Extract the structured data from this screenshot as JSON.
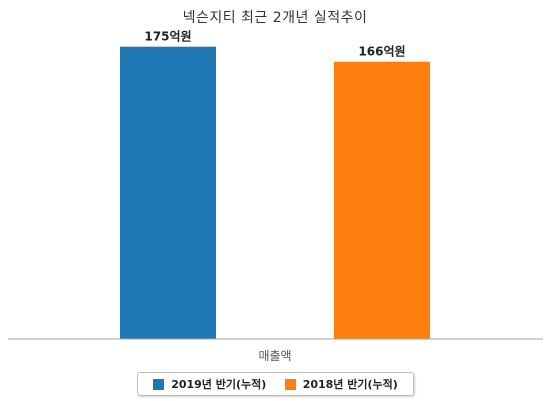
{
  "chart_data": {
    "type": "bar",
    "title": "넥슨지티 최근 2개년 실적추이",
    "categories": [
      "매출액"
    ],
    "series": [
      {
        "name": "2019년 반기(누적)",
        "values": [
          175
        ],
        "label": "175억원",
        "color": "#1f77b4"
      },
      {
        "name": "2018년 반기(누적)",
        "values": [
          166
        ],
        "label": "166억원",
        "color": "#ff7f0e"
      }
    ],
    "ylim": [
      0,
      185
    ],
    "grid": false,
    "legend": "bottom"
  }
}
